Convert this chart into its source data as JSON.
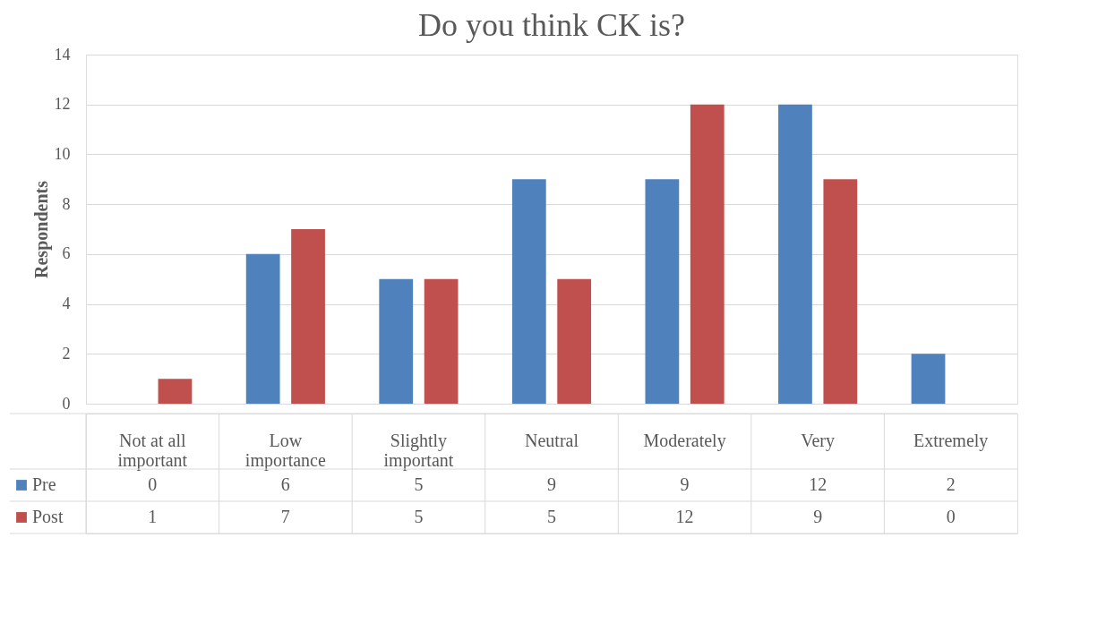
{
  "chart_data": {
    "type": "bar",
    "title": "Do you think CK is?",
    "ylabel": "Respondents",
    "categories": [
      "Not at all important",
      "Low importance",
      "Slightly important",
      "Neutral",
      "Moderately",
      "Very",
      "Extremely"
    ],
    "series": [
      {
        "name": "Pre",
        "color": "#4f81bd",
        "values": [
          0,
          6,
          5,
          9,
          9,
          12,
          2
        ]
      },
      {
        "name": "Post",
        "color": "#c0504d",
        "values": [
          1,
          7,
          5,
          5,
          12,
          9,
          0
        ]
      }
    ],
    "ylim": [
      0,
      14
    ],
    "yticks": [
      0,
      2,
      4,
      6,
      8,
      10,
      12,
      14
    ],
    "grid": "y",
    "legend": "bottom",
    "data_labels": true
  }
}
